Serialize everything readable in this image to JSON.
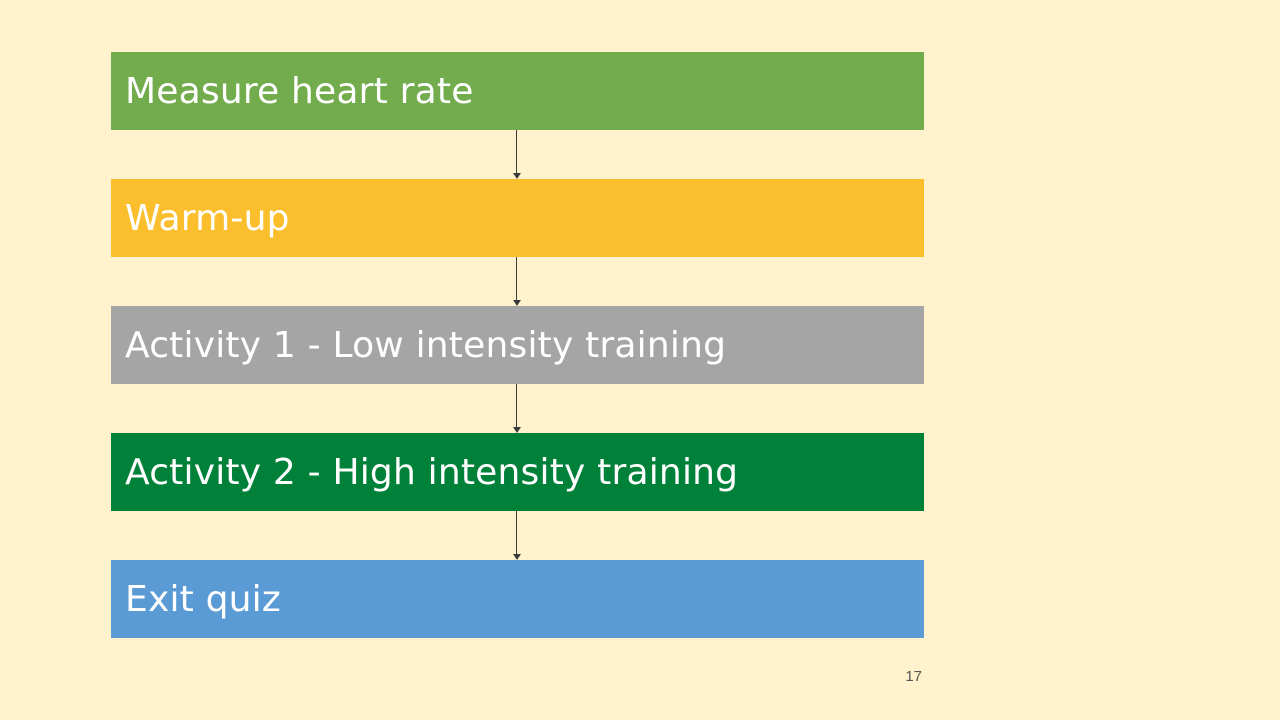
{
  "slide": {
    "background_color": "#fff2cc",
    "page_number": "17"
  },
  "flow": {
    "steps": [
      {
        "label": "Measure heart rate",
        "color": "#72ac4d"
      },
      {
        "label": "Warm-up",
        "color": "#fbbf2e"
      },
      {
        "label": "Activity 1 - Low intensity training",
        "color": "#a5a5a5"
      },
      {
        "label": "Activity 2 - High intensity training",
        "color": "#00813a"
      },
      {
        "label": "Exit quiz",
        "color": "#5b9bd5"
      }
    ]
  }
}
